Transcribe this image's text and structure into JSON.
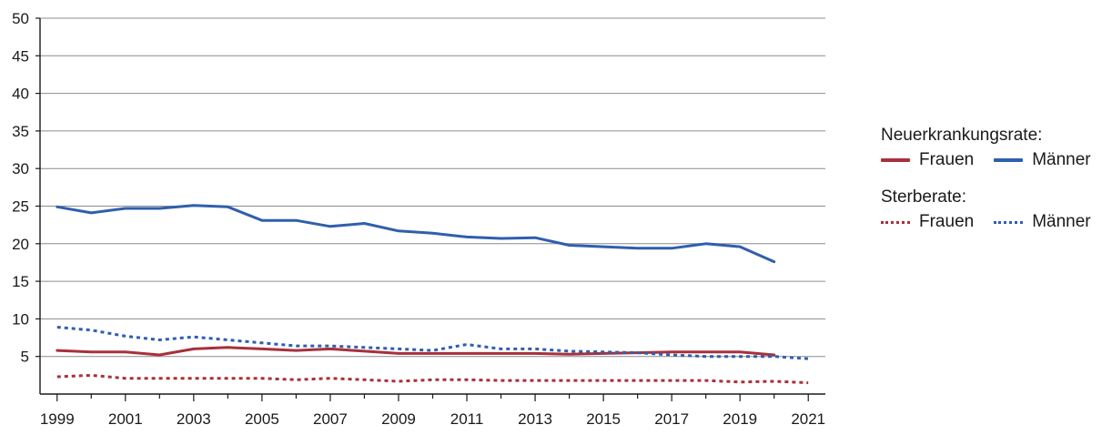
{
  "chart_data": {
    "type": "line",
    "title": "",
    "xlabel": "",
    "ylabel": "",
    "ylim": [
      0,
      50
    ],
    "yticks": [
      5,
      10,
      15,
      20,
      25,
      30,
      35,
      40,
      45,
      50
    ],
    "ytick_labels": [
      "5",
      "10",
      "15",
      "20",
      "25",
      "30",
      "35",
      "40",
      "45",
      "50"
    ],
    "xlim": [
      1998.5,
      2021.5
    ],
    "xticks": [
      1999,
      2001,
      2003,
      2005,
      2007,
      2009,
      2011,
      2013,
      2015,
      2017,
      2019,
      2021
    ],
    "xtick_labels": [
      "1999",
      "2001",
      "2003",
      "2005",
      "2007",
      "2009",
      "2011",
      "2013",
      "2015",
      "2017",
      "2019",
      "2021"
    ],
    "grid": "horizontal",
    "legend_position": "right",
    "legend": {
      "groups": [
        {
          "heading": "Neuerkrankungsrate:",
          "entries": [
            "Frauen",
            "Männer"
          ]
        },
        {
          "heading": "Sterberate:",
          "entries": [
            "Frauen",
            "Männer"
          ]
        }
      ]
    },
    "series": [
      {
        "name": "Neuerkrankungsrate: Männer",
        "color": "#2f5fae",
        "style": "solid",
        "x": [
          1999,
          2000,
          2001,
          2002,
          2003,
          2004,
          2005,
          2006,
          2007,
          2008,
          2009,
          2010,
          2011,
          2012,
          2013,
          2014,
          2015,
          2016,
          2017,
          2018,
          2019,
          2020
        ],
        "values": [
          24.9,
          24.1,
          24.7,
          24.7,
          25.1,
          24.9,
          23.1,
          23.1,
          22.3,
          22.7,
          21.7,
          21.4,
          20.9,
          20.7,
          20.8,
          19.8,
          19.6,
          19.4,
          19.4,
          20.0,
          19.6,
          17.6
        ]
      },
      {
        "name": "Neuerkrankungsrate: Frauen",
        "color": "#a8303c",
        "style": "solid",
        "x": [
          1999,
          2000,
          2001,
          2002,
          2003,
          2004,
          2005,
          2006,
          2007,
          2008,
          2009,
          2010,
          2011,
          2012,
          2013,
          2014,
          2015,
          2016,
          2017,
          2018,
          2019,
          2020
        ],
        "values": [
          5.8,
          5.6,
          5.6,
          5.2,
          6.0,
          6.2,
          6.0,
          5.8,
          6.0,
          5.7,
          5.4,
          5.4,
          5.4,
          5.4,
          5.4,
          5.3,
          5.4,
          5.5,
          5.6,
          5.6,
          5.6,
          5.2
        ]
      },
      {
        "name": "Sterberate: Männer",
        "color": "#2f5fae",
        "style": "dotted",
        "x": [
          1999,
          2000,
          2001,
          2002,
          2003,
          2004,
          2005,
          2006,
          2007,
          2008,
          2009,
          2010,
          2011,
          2012,
          2013,
          2014,
          2015,
          2016,
          2017,
          2018,
          2019,
          2020,
          2021
        ],
        "values": [
          8.9,
          8.5,
          7.7,
          7.2,
          7.6,
          7.2,
          6.8,
          6.4,
          6.4,
          6.2,
          6.0,
          5.8,
          6.6,
          6.0,
          6.0,
          5.7,
          5.6,
          5.5,
          5.2,
          5.0,
          5.0,
          5.0,
          4.7
        ]
      },
      {
        "name": "Sterberate: Frauen",
        "color": "#a8303c",
        "style": "dotted",
        "x": [
          1999,
          2000,
          2001,
          2002,
          2003,
          2004,
          2005,
          2006,
          2007,
          2008,
          2009,
          2010,
          2011,
          2012,
          2013,
          2014,
          2015,
          2016,
          2017,
          2018,
          2019,
          2020,
          2021
        ],
        "values": [
          2.3,
          2.5,
          2.1,
          2.1,
          2.1,
          2.1,
          2.1,
          1.9,
          2.1,
          1.9,
          1.7,
          1.9,
          1.9,
          1.8,
          1.8,
          1.8,
          1.8,
          1.8,
          1.8,
          1.8,
          1.6,
          1.7,
          1.5
        ]
      }
    ]
  }
}
